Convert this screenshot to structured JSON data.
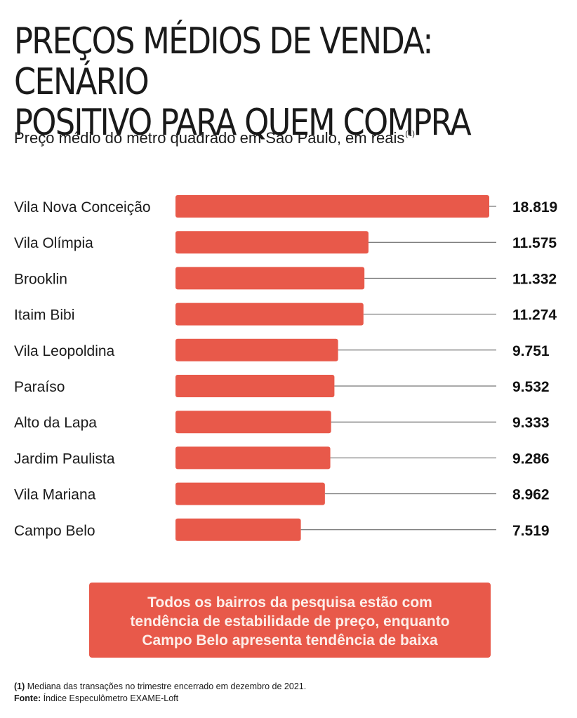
{
  "title_line1": "PREÇOS MÉDIOS DE VENDA: CENÁRIO",
  "title_line2": "POSITIVO PARA QUEM COMPRA",
  "subtitle": "Preço médio do metro quadrado em São Paulo, em reais",
  "subtitle_note": "(1)",
  "chart_data": {
    "type": "bar",
    "orientation": "horizontal",
    "categories": [
      "Vila Nova Conceição",
      "Vila Olímpia",
      "Brooklin",
      "Itaim Bibi",
      "Vila Leopoldina",
      "Paraíso",
      "Alto da Lapa",
      "Jardim Paulista",
      "Vila Mariana",
      "Campo Belo"
    ],
    "values": [
      18819,
      11575,
      11332,
      11274,
      9751,
      9532,
      9333,
      9286,
      8962,
      7519
    ],
    "value_labels": [
      "18.819",
      "11.575",
      "11.332",
      "11.274",
      "9.751",
      "9.532",
      "9.333",
      "9.286",
      "8.962",
      "7.519"
    ],
    "bar_color": "#e8594a",
    "xlim": [
      0,
      18819
    ]
  },
  "callout": {
    "line1": "Todos os bairros da pesquisa estão com",
    "line2": "tendência de estabilidade de preço, enquanto",
    "line3": "Campo Belo apresenta tendência de baixa"
  },
  "footnote": {
    "note_marker": "(1)",
    "note_text": "Mediana das transações no trimestre encerrado em dezembro de 2021.",
    "source_label": "Fonte:",
    "source_text": "Índice Especulômetro EXAME-Loft"
  }
}
